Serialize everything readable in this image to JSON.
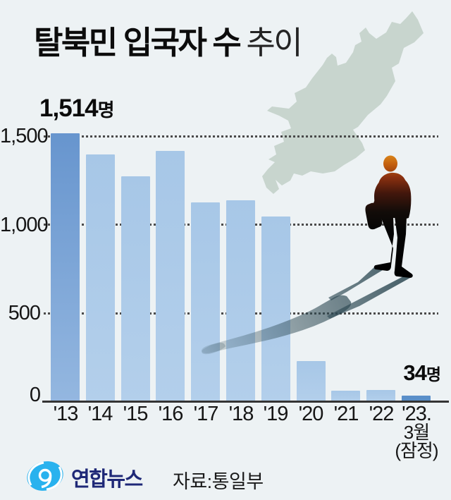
{
  "title": {
    "main": "탈북민 입국자 수",
    "sub": "추이"
  },
  "chart_data": {
    "type": "bar",
    "title": "탈북민 입국자 수 추이",
    "categories": [
      "'13",
      "'14",
      "'15",
      "'16",
      "'17",
      "'18",
      "'19",
      "'20",
      "'21",
      "'22",
      "'23."
    ],
    "category_sublabels": {
      "10": [
        "3월",
        "(잠정)"
      ]
    },
    "values": [
      1514,
      1397,
      1275,
      1418,
      1127,
      1137,
      1047,
      229,
      63,
      67,
      34
    ],
    "unit": "명",
    "ylim": [
      0,
      1500
    ],
    "yticks": [
      {
        "label": "1,500",
        "value": 1500
      },
      {
        "label": "1,000",
        "value": 1000
      },
      {
        "label": "500",
        "value": 500
      },
      {
        "label": "0",
        "value": 0
      }
    ],
    "grid": "dotted-horizontal",
    "legend": "none",
    "highlight_first_index": 0,
    "highlight_last_index": 10
  },
  "annotations": {
    "first": {
      "number": "1,514",
      "unit": "명"
    },
    "last": {
      "number": "34",
      "unit": "명"
    }
  },
  "footer": {
    "logo_text": "연합뉴스",
    "source": "자료:통일부"
  },
  "colors": {
    "background": "#edf2f4",
    "bar_light_top": "#a7c7e7",
    "bar_light_bottom": "#b3cfeb",
    "bar_first_top": "#6795ce",
    "bar_first_bottom": "#94b7e0",
    "bar_last": "#5a8fc9",
    "grid": "#4a4a4a",
    "axis": "#343434",
    "text": "#111111",
    "map": "#c8d5ce",
    "shadow": "#2c4852",
    "figure_orange": "#d8821a",
    "logo_blue": "#29b2ee",
    "logo_navy": "#1e2877"
  }
}
